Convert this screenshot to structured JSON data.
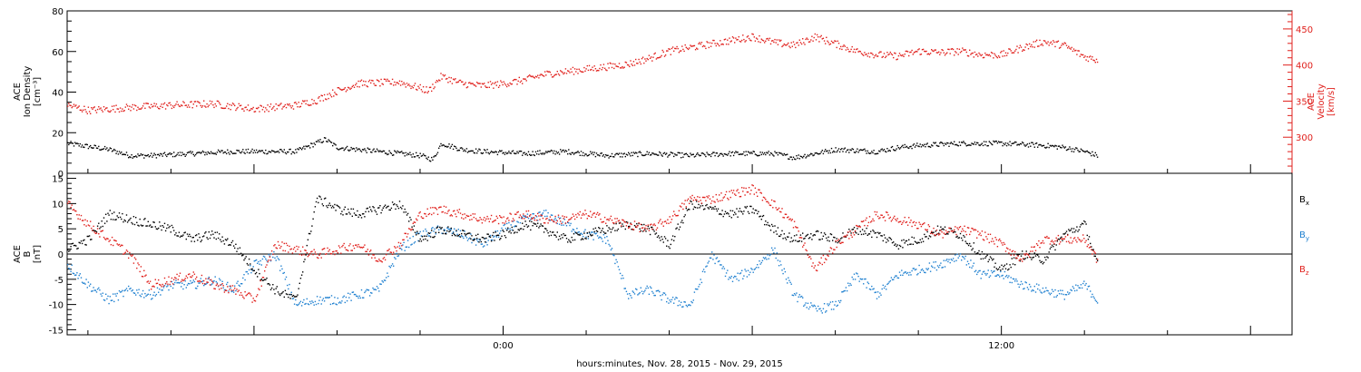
{
  "chart_data": [
    {
      "type": "scatter",
      "title": "",
      "xlabel": "",
      "ylabel": "ACE Ion Density [cm⁻³]",
      "ylabel_parts": [
        "ACE",
        "Ion Density",
        "[cm⁻³]"
      ],
      "y2label": "ACE Velocity [km/s]",
      "y2label_parts": [
        "ACE",
        "Velocity",
        "[km/s]"
      ],
      "x_range_hours": [
        -10.5,
        19
      ],
      "ylim": [
        0,
        80
      ],
      "yticks": [
        0,
        20,
        40,
        60,
        80
      ],
      "y2lim": [
        250,
        475
      ],
      "y2ticks": [
        300,
        350,
        400,
        450
      ],
      "colors": {
        "density": "#000000",
        "velocity": "#e0201c"
      },
      "series": [
        {
          "name": "Ion Density",
          "axis": "left",
          "color": "#000000",
          "anchors_x": [
            -10.5,
            -9.5,
            -9.0,
            -8.5,
            -7.5,
            -6.5,
            -5.0,
            -4.3,
            -4.0,
            -3.5,
            -2.5,
            -2.0,
            -1.7,
            -1.5,
            -1.0,
            -0.5,
            0.5,
            1.5,
            2.5,
            3.5,
            4.5,
            5.5,
            6.5,
            7.0,
            8.0,
            9.0,
            9.5,
            10.0,
            11.0,
            12.0,
            13.0,
            13.5,
            14.0,
            14.3
          ],
          "anchors_y": [
            15,
            12,
            9,
            9,
            10,
            11,
            11,
            17,
            13,
            12,
            10,
            9,
            7,
            15,
            12,
            11,
            10,
            11,
            9,
            10,
            9,
            10,
            10,
            8,
            12,
            11,
            13,
            14,
            15,
            15,
            14,
            13,
            11,
            9
          ]
        },
        {
          "name": "Velocity",
          "axis": "right",
          "color": "#e0201c",
          "anchors_x": [
            -10.5,
            -10.0,
            -9.0,
            -8.0,
            -7.0,
            -6.0,
            -5.0,
            -4.5,
            -4.0,
            -3.5,
            -2.5,
            -1.8,
            -1.5,
            -1.0,
            -0.5,
            0.0,
            0.5,
            1.0,
            2.0,
            3.0,
            3.5,
            4.0,
            5.0,
            6.0,
            6.5,
            7.0,
            7.5,
            8.0,
            8.5,
            9.0,
            9.5,
            10.0,
            10.5,
            11.0,
            11.5,
            12.0,
            12.5,
            13.0,
            13.5,
            14.0,
            14.3
          ],
          "anchors_y": [
            345,
            338,
            342,
            345,
            347,
            340,
            345,
            352,
            365,
            375,
            377,
            365,
            385,
            375,
            372,
            375,
            380,
            388,
            395,
            402,
            410,
            420,
            430,
            440,
            432,
            428,
            440,
            430,
            420,
            415,
            413,
            420,
            418,
            420,
            415,
            415,
            425,
            433,
            428,
            412,
            408
          ]
        }
      ]
    },
    {
      "type": "scatter",
      "title": "",
      "xlabel": "hours:minutes, Nov. 28, 2015 - Nov. 29, 2015",
      "ylabel": "ACE B [nT]",
      "ylabel_parts": [
        "ACE",
        "B",
        "[nT]"
      ],
      "x_range_hours": [
        -10.5,
        19
      ],
      "ylim": [
        -16,
        16
      ],
      "yticks": [
        -15,
        -10,
        -5,
        0,
        5,
        10,
        15
      ],
      "xticks": [
        {
          "hour": 0,
          "label": "0:00"
        },
        {
          "hour": 12,
          "label": "12:00"
        }
      ],
      "zero_line": true,
      "colors": {
        "Bx": "#000000",
        "By": "#1f80d0",
        "Bz": "#e0201c"
      },
      "legend": [
        "Bx",
        "By",
        "Bz"
      ],
      "series": [
        {
          "name": "Bx",
          "label_main": "B",
          "label_sub": "x",
          "color": "#000000",
          "anchors_x": [
            -10.5,
            -10.0,
            -9.5,
            -9.0,
            -8.5,
            -8.0,
            -7.5,
            -7.0,
            -6.5,
            -6.0,
            -5.5,
            -5.0,
            -4.5,
            -4.2,
            -4.0,
            -3.5,
            -3.0,
            -2.5,
            -2.0,
            -1.5,
            -1.0,
            -0.5,
            0.0,
            0.5,
            1.0,
            1.5,
            2.0,
            2.5,
            3.0,
            3.5,
            4.0,
            4.5,
            5.0,
            5.5,
            6.0,
            6.5,
            7.0,
            7.5,
            8.0,
            8.5,
            9.0,
            9.5,
            10.0,
            10.5,
            11.0,
            11.5,
            12.0,
            12.5,
            13.0,
            13.5,
            14.0,
            14.3
          ],
          "anchors_y": [
            1,
            3,
            8,
            7,
            6,
            5,
            3,
            4,
            2,
            -3,
            -7,
            -9,
            11,
            10,
            9,
            8,
            9,
            10,
            3,
            5,
            4,
            3,
            4,
            6,
            5,
            3,
            4,
            5,
            6,
            5,
            2,
            10,
            9,
            8,
            9,
            5,
            3,
            4,
            3,
            5,
            4,
            2,
            3,
            5,
            4,
            0,
            -3,
            0,
            -1,
            4,
            6,
            -2
          ]
        },
        {
          "name": "By",
          "label_main": "B",
          "label_sub": "y",
          "color": "#1f80d0",
          "anchors_x": [
            -10.5,
            -10.0,
            -9.5,
            -9.0,
            -8.5,
            -8.0,
            -7.5,
            -7.0,
            -6.5,
            -6.0,
            -5.5,
            -5.0,
            -4.5,
            -4.0,
            -3.5,
            -3.0,
            -2.5,
            -2.0,
            -1.5,
            -1.0,
            -0.5,
            0.0,
            0.5,
            1.0,
            1.5,
            2.0,
            2.5,
            3.0,
            3.5,
            4.0,
            4.5,
            5.0,
            5.5,
            6.0,
            6.5,
            7.0,
            7.5,
            8.0,
            8.5,
            9.0,
            9.5,
            10.0,
            10.5,
            11.0,
            11.5,
            12.0,
            12.5,
            13.0,
            13.5,
            14.0,
            14.3
          ],
          "anchors_y": [
            -2,
            -6,
            -9,
            -7,
            -8,
            -6,
            -6,
            -5,
            -7,
            -2,
            0,
            -10,
            -9,
            -9,
            -8,
            -7,
            1,
            4,
            5,
            4,
            2,
            5,
            7,
            8,
            6,
            4,
            3,
            -8,
            -7,
            -9,
            -10,
            0,
            -5,
            -3,
            1,
            -8,
            -11,
            -10,
            -4,
            -8,
            -4,
            -3,
            -2,
            0,
            -4,
            -4,
            -6,
            -7,
            -8,
            -6,
            -9
          ]
        },
        {
          "name": "Bz",
          "label_main": "B",
          "label_sub": "z",
          "color": "#e0201c",
          "anchors_x": [
            -10.5,
            -10.0,
            -9.5,
            -9.0,
            -8.5,
            -8.0,
            -7.5,
            -7.0,
            -6.5,
            -6.0,
            -5.5,
            -5.0,
            -4.5,
            -4.0,
            -3.5,
            -3.0,
            -2.5,
            -2.0,
            -1.5,
            -1.0,
            -0.5,
            0.0,
            0.5,
            1.0,
            1.5,
            2.0,
            2.5,
            3.0,
            3.5,
            4.0,
            4.5,
            5.0,
            5.5,
            6.0,
            6.5,
            7.0,
            7.5,
            8.0,
            8.5,
            9.0,
            9.5,
            10.0,
            10.5,
            11.0,
            11.5,
            12.0,
            12.5,
            13.0,
            13.5,
            14.0,
            14.3
          ],
          "anchors_y": [
            10,
            6,
            3,
            0,
            -6,
            -5,
            -4,
            -6,
            -7,
            -9,
            2,
            1,
            0,
            1,
            2,
            -1,
            2,
            8,
            9,
            8,
            7,
            7,
            8,
            7,
            7,
            8,
            7,
            6,
            5,
            7,
            11,
            11,
            12,
            13,
            10,
            6,
            -3,
            2,
            5,
            8,
            7,
            6,
            4,
            5,
            4,
            2,
            -1,
            3,
            3,
            3,
            -1
          ]
        }
      ]
    }
  ]
}
